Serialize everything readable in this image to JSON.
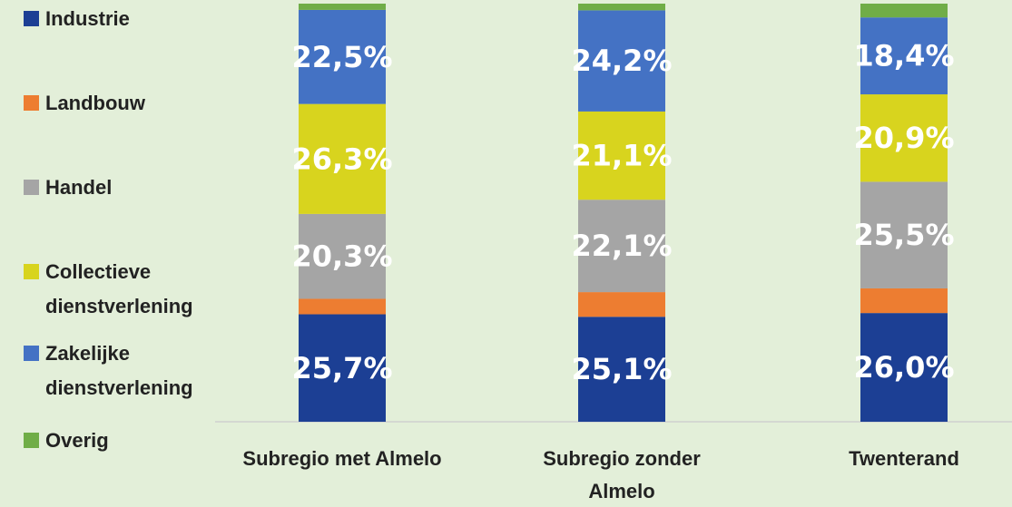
{
  "chart_data": {
    "type": "stacked_bar",
    "categories": [
      "Subregio met Almelo",
      "Subregio zonder Almelo",
      "Twenterand"
    ],
    "series": [
      {
        "name": "Industrie",
        "color": "#1c3f94",
        "values": [
          25.7,
          25.1,
          26.0
        ],
        "value_labels": [
          "25,7%",
          "25,1%",
          "26,0%"
        ]
      },
      {
        "name": "Landbouw",
        "color": "#ed7d31",
        "values": [
          3.7,
          5.9,
          5.9
        ],
        "value_labels": [
          null,
          null,
          null
        ]
      },
      {
        "name": "Handel",
        "color": "#a5a5a5",
        "values": [
          20.3,
          22.1,
          25.5
        ],
        "value_labels": [
          "20,3%",
          "22,1%",
          "25,5%"
        ]
      },
      {
        "name": "Collectieve dienstverlening",
        "color": "#d8d41e",
        "values": [
          26.3,
          21.1,
          20.9
        ],
        "value_labels": [
          "26,3%",
          "21,1%",
          "20,9%"
        ]
      },
      {
        "name": "Zakelijke dienstverlening",
        "color": "#4472c4",
        "values": [
          22.5,
          24.2,
          18.4
        ],
        "value_labels": [
          "22,5%",
          "24,2%",
          "18,4%"
        ]
      },
      {
        "name": "Overig",
        "color": "#70ad47",
        "values": [
          1.5,
          1.6,
          3.3
        ],
        "value_labels": [
          null,
          null,
          null
        ]
      }
    ]
  }
}
